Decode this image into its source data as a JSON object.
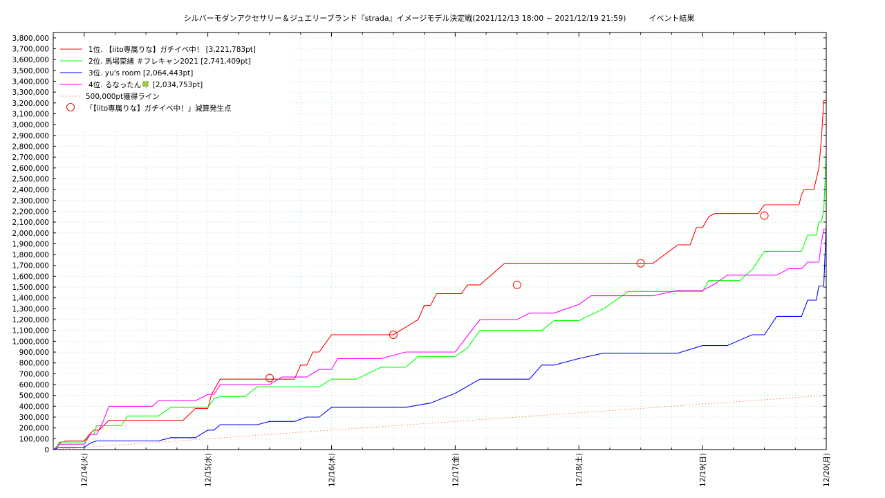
{
  "chart_data": {
    "type": "line",
    "title": "シルバーモダンアクセサリー＆ジュエリーブランド『strada』イメージモデル決定戦(2021/12/13 18:00 ~ 2021/12/19 21:59)　　　イベント結果",
    "xlabel": "",
    "ylabel": "",
    "x_range": [
      -0.25,
      6.0
    ],
    "ylim": [
      0,
      3850000
    ],
    "x_ticks": [
      "12/14(火)",
      "12/15(水)",
      "12/16(木)",
      "12/17(金)",
      "12/18(土)",
      "12/19(日)",
      "12/20(月)"
    ],
    "y_ticks": [
      0,
      100000,
      200000,
      300000,
      400000,
      500000,
      600000,
      700000,
      800000,
      900000,
      1000000,
      1100000,
      1200000,
      1300000,
      1400000,
      1500000,
      1600000,
      1700000,
      1800000,
      1900000,
      2000000,
      2100000,
      2200000,
      2300000,
      2400000,
      2500000,
      2600000,
      2700000,
      2800000,
      2900000,
      3000000,
      3100000,
      3200000,
      3300000,
      3400000,
      3500000,
      3600000,
      3700000,
      3800000
    ],
    "y_tick_labels": [
      "0",
      "100,000",
      "200,000",
      "300,000",
      "400,000",
      "500,000",
      "600,000",
      "700,000",
      "800,000",
      "900,000",
      "1,000,000",
      "1,100,000",
      "1,200,000",
      "1,300,000",
      "1,400,000",
      "1,500,000",
      "1,600,000",
      "1,700,000",
      "1,800,000",
      "1,900,000",
      "2,000,000",
      "2,100,000",
      "2,200,000",
      "2,300,000",
      "2,400,000",
      "2,500,000",
      "2,600,000",
      "2,700,000",
      "2,800,000",
      "2,900,000",
      "3,000,000",
      "3,100,000",
      "3,200,000",
      "3,300,000",
      "3,400,000",
      "3,500,000",
      "3,600,000",
      "3,700,000",
      "3,800,000"
    ],
    "grid": true,
    "legend_position": "top-left",
    "series": [
      {
        "name": "1位. 【iito専属りな】ガチイベ中！ [3,221,783pt]",
        "color": "#ff0000",
        "x": [
          -0.25,
          -0.22,
          -0.2,
          -0.15,
          0,
          0.05,
          0.08,
          0.12,
          0.2,
          0.25,
          0.3,
          0.4,
          0.5,
          0.6,
          0.7,
          0.8,
          0.9,
          1.0,
          1.03,
          1.1,
          1.3,
          1.4,
          1.5,
          1.6,
          1.7,
          1.75,
          1.8,
          1.85,
          1.9,
          2.0,
          2.05,
          2.1,
          2.2,
          2.25,
          2.3,
          2.5,
          2.7,
          2.75,
          2.8,
          2.85,
          2.9,
          2.95,
          3.0,
          3.05,
          3.1,
          3.2,
          3.3,
          3.4,
          3.5,
          3.6,
          3.7,
          3.75,
          3.8,
          3.9,
          4.0,
          4.2,
          4.4,
          4.6,
          4.8,
          4.9,
          4.95,
          5.0,
          5.05,
          5.1,
          5.15,
          5.2,
          5.25,
          5.3,
          5.4,
          5.45,
          5.5,
          5.55,
          5.6,
          5.65,
          5.7,
          5.75,
          5.78,
          5.8,
          5.82,
          5.84,
          5.86,
          5.88,
          5.9,
          5.92,
          5.94,
          5.96,
          5.98,
          6.0
        ],
        "values": [
          0,
          30000,
          60000,
          80000,
          80000,
          150000,
          180000,
          180000,
          270000,
          270000,
          270000,
          270000,
          270000,
          270000,
          270000,
          270000,
          380000,
          380000,
          510000,
          650000,
          650000,
          650000,
          650000,
          650000,
          650000,
          780000,
          780000,
          900000,
          900000,
          1060000,
          1060000,
          1060000,
          1060000,
          1060000,
          1060000,
          1060000,
          1200000,
          1330000,
          1330000,
          1440000,
          1440000,
          1440000,
          1440000,
          1440000,
          1520000,
          1520000,
          1620000,
          1720000,
          1720000,
          1720000,
          1720000,
          1720000,
          1720000,
          1720000,
          1720000,
          1720000,
          1720000,
          1720000,
          1890000,
          1890000,
          2050000,
          2050000,
          2150000,
          2180000,
          2180000,
          2180000,
          2180000,
          2180000,
          2180000,
          2180000,
          2260000,
          2260000,
          2260000,
          2260000,
          2260000,
          2260000,
          2260000,
          2350000,
          2400000,
          2400000,
          2400000,
          2400000,
          2400000,
          2500000,
          2600000,
          2850000,
          3221783,
          3221783
        ]
      },
      {
        "name": "2位. 馬場菜緒 ＃フレキャン2021 [2,741,409pt]",
        "color": "#00ff00",
        "x": [
          -0.25,
          -0.22,
          -0.2,
          0,
          0.05,
          0.08,
          0.1,
          0.3,
          0.35,
          0.4,
          0.5,
          0.6,
          0.7,
          0.8,
          0.9,
          0.95,
          1.0,
          1.05,
          1.1,
          1.2,
          1.3,
          1.4,
          1.5,
          1.6,
          1.65,
          1.7,
          1.8,
          1.9,
          2.0,
          2.2,
          2.4,
          2.6,
          2.7,
          2.8,
          2.9,
          3.0,
          3.1,
          3.2,
          3.3,
          3.4,
          3.5,
          3.7,
          3.8,
          4.0,
          4.2,
          4.4,
          4.6,
          4.8,
          4.9,
          5.0,
          5.05,
          5.1,
          5.2,
          5.3,
          5.4,
          5.5,
          5.6,
          5.7,
          5.75,
          5.8,
          5.85,
          5.9,
          5.92,
          5.94,
          5.96,
          5.98,
          6.0
        ],
        "values": [
          0,
          30000,
          70000,
          70000,
          140000,
          140000,
          220000,
          220000,
          310000,
          310000,
          310000,
          310000,
          390000,
          390000,
          390000,
          390000,
          390000,
          470000,
          490000,
          490000,
          490000,
          580000,
          580000,
          580000,
          580000,
          580000,
          580000,
          580000,
          650000,
          650000,
          760000,
          760000,
          860000,
          860000,
          860000,
          860000,
          940000,
          1100000,
          1100000,
          1100000,
          1100000,
          1100000,
          1190000,
          1190000,
          1300000,
          1460000,
          1460000,
          1460000,
          1460000,
          1460000,
          1560000,
          1560000,
          1560000,
          1560000,
          1660000,
          1830000,
          1830000,
          1830000,
          1830000,
          1830000,
          1980000,
          1980000,
          1980000,
          2100000,
          2100000,
          2200000,
          2741409
        ]
      },
      {
        "name": "3位. yu's room [2,064,443pt]",
        "color": "#0000ff",
        "x": [
          -0.25,
          -0.2,
          0,
          0.05,
          0.1,
          0.2,
          0.3,
          0.4,
          0.5,
          0.6,
          0.7,
          0.8,
          0.9,
          1.0,
          1.05,
          1.1,
          1.2,
          1.3,
          1.4,
          1.5,
          1.6,
          1.7,
          1.8,
          1.9,
          2.0,
          2.2,
          2.4,
          2.6,
          2.8,
          3.0,
          3.2,
          3.4,
          3.5,
          3.6,
          3.7,
          3.8,
          4.0,
          4.2,
          4.4,
          4.6,
          4.8,
          5.0,
          5.2,
          5.4,
          5.5,
          5.6,
          5.7,
          5.8,
          5.85,
          5.9,
          5.92,
          5.94,
          5.96,
          5.98,
          6.0
        ],
        "values": [
          0,
          20000,
          20000,
          60000,
          80000,
          80000,
          80000,
          80000,
          80000,
          80000,
          110000,
          110000,
          110000,
          180000,
          180000,
          230000,
          230000,
          230000,
          230000,
          260000,
          260000,
          260000,
          300000,
          300000,
          390000,
          390000,
          390000,
          390000,
          430000,
          520000,
          650000,
          650000,
          650000,
          650000,
          780000,
          780000,
          840000,
          890000,
          890000,
          890000,
          890000,
          960000,
          960000,
          1060000,
          1060000,
          1230000,
          1230000,
          1230000,
          1380000,
          1380000,
          1380000,
          1510000,
          1510000,
          1510000,
          2064443
        ]
      },
      {
        "name": "4位. るなったん🍀 [2,034,753pt]",
        "color": "#ff00ff",
        "x": [
          -0.25,
          -0.22,
          -0.2,
          0,
          0.05,
          0.1,
          0.15,
          0.2,
          0.3,
          0.4,
          0.5,
          0.55,
          0.6,
          0.7,
          0.8,
          0.9,
          1.0,
          1.05,
          1.1,
          1.2,
          1.3,
          1.4,
          1.5,
          1.6,
          1.7,
          1.8,
          1.9,
          2.0,
          2.05,
          2.1,
          2.2,
          2.4,
          2.6,
          2.8,
          2.9,
          3.0,
          3.1,
          3.2,
          3.4,
          3.5,
          3.6,
          3.8,
          4.0,
          4.1,
          4.2,
          4.4,
          4.6,
          4.8,
          5.0,
          5.1,
          5.2,
          5.3,
          5.4,
          5.5,
          5.6,
          5.7,
          5.75,
          5.8,
          5.85,
          5.9,
          5.92,
          5.94,
          5.96,
          5.98,
          6.0
        ],
        "values": [
          0,
          20000,
          50000,
          50000,
          140000,
          140000,
          250000,
          400000,
          400000,
          400000,
          400000,
          400000,
          450000,
          450000,
          450000,
          450000,
          510000,
          510000,
          600000,
          600000,
          600000,
          600000,
          600000,
          670000,
          670000,
          670000,
          740000,
          740000,
          840000,
          840000,
          840000,
          840000,
          900000,
          900000,
          900000,
          900000,
          1050000,
          1200000,
          1200000,
          1200000,
          1260000,
          1260000,
          1340000,
          1420000,
          1420000,
          1420000,
          1420000,
          1470000,
          1470000,
          1530000,
          1610000,
          1610000,
          1610000,
          1610000,
          1610000,
          1670000,
          1670000,
          1670000,
          1730000,
          1730000,
          1730000,
          1730000,
          1900000,
          2034753,
          2034753
        ]
      },
      {
        "name": "500,000pt獲得ライン",
        "color": "#ff6633",
        "dashed": true,
        "x": [
          -0.25,
          6.0
        ],
        "values": [
          0,
          500000
        ]
      }
    ],
    "markers": {
      "name": "「【iito専属りな】ガチイベ中！」減算発生点",
      "color": "#ff0000",
      "points": [
        {
          "x": 1.5,
          "y": 660000
        },
        {
          "x": 2.5,
          "y": 1060000
        },
        {
          "x": 3.5,
          "y": 1520000
        },
        {
          "x": 4.5,
          "y": 1720000
        },
        {
          "x": 5.5,
          "y": 2160000
        }
      ]
    }
  }
}
